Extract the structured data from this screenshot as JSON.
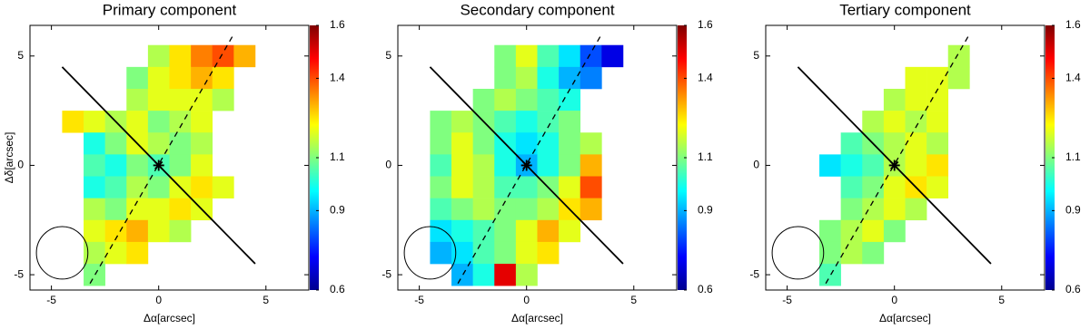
{
  "chart_data": [
    {
      "type": "heatmap",
      "title": "Primary component",
      "xlabel": "Δα[arcsec]",
      "ylabel": "Δδ[arcsec]",
      "x": [
        -4,
        -3,
        -2,
        -1,
        0,
        1,
        2,
        3,
        4
      ],
      "y": [
        5,
        4,
        3,
        2,
        1,
        0,
        -1,
        -2,
        -3,
        -4,
        -5
      ],
      "z": [
        [
          null,
          null,
          null,
          null,
          1.15,
          1.25,
          1.35,
          1.4,
          1.3
        ],
        [
          null,
          null,
          null,
          1.1,
          1.2,
          1.25,
          1.3,
          1.25,
          null
        ],
        [
          null,
          null,
          null,
          1.15,
          1.2,
          1.2,
          1.2,
          1.15,
          null
        ],
        [
          1.25,
          1.2,
          1.15,
          1.2,
          1.1,
          1.15,
          1.2,
          null,
          null
        ],
        [
          null,
          1.0,
          1.1,
          1.2,
          1.15,
          1.1,
          1.15,
          null,
          null
        ],
        [
          null,
          1.05,
          1.0,
          1.1,
          1.05,
          1.1,
          1.2,
          null,
          null
        ],
        [
          null,
          1.0,
          1.05,
          1.15,
          1.1,
          1.2,
          1.25,
          1.2,
          null
        ],
        [
          null,
          1.15,
          1.1,
          1.2,
          1.2,
          1.25,
          1.2,
          null,
          null
        ],
        [
          null,
          1.2,
          1.25,
          1.3,
          1.2,
          1.15,
          null,
          null,
          null
        ],
        [
          null,
          1.15,
          1.2,
          1.25,
          null,
          null,
          null,
          null,
          null
        ],
        [
          null,
          1.1,
          null,
          null,
          null,
          null,
          null,
          null,
          null
        ]
      ],
      "xlim": [
        -6,
        7
      ],
      "ylim": [
        -5.7,
        6.4
      ],
      "xticks": [
        -5,
        0,
        5
      ],
      "yticks": [
        -5,
        0,
        5
      ],
      "clim": [
        0.6,
        1.6
      ],
      "cticks": [
        0.6,
        0.9,
        1.1,
        1.4,
        1.6
      ]
    },
    {
      "type": "heatmap",
      "title": "Secondary component",
      "xlabel": "Δα[arcsec]",
      "x": [
        -4,
        -3,
        -2,
        -1,
        0,
        1,
        2,
        3,
        4
      ],
      "y": [
        5,
        4,
        3,
        2,
        1,
        0,
        -1,
        -2,
        -3,
        -4,
        -5
      ],
      "z": [
        [
          null,
          null,
          null,
          1.1,
          1.2,
          1.05,
          0.95,
          0.8,
          0.7
        ],
        [
          null,
          null,
          null,
          1.1,
          1.15,
          1.0,
          0.9,
          0.85,
          null
        ],
        [
          null,
          null,
          1.1,
          1.15,
          1.1,
          1.05,
          1.0,
          null,
          null
        ],
        [
          1.1,
          1.15,
          1.1,
          1.05,
          1.0,
          1.05,
          1.1,
          null,
          null
        ],
        [
          1.1,
          1.2,
          1.1,
          1.0,
          0.95,
          1.0,
          1.1,
          1.15,
          null
        ],
        [
          1.05,
          1.2,
          1.15,
          1.0,
          0.9,
          1.0,
          1.1,
          1.3,
          null
        ],
        [
          1.1,
          1.2,
          1.15,
          1.05,
          1.05,
          1.1,
          1.2,
          1.4,
          null
        ],
        [
          1.05,
          1.1,
          1.15,
          1.1,
          1.1,
          1.15,
          1.25,
          1.3,
          null
        ],
        [
          0.95,
          1.0,
          1.05,
          1.1,
          1.2,
          1.3,
          1.2,
          null,
          null
        ],
        [
          0.9,
          0.95,
          1.05,
          1.1,
          1.2,
          1.25,
          null,
          null,
          null
        ],
        [
          null,
          0.9,
          1.0,
          1.5,
          1.15,
          null,
          null,
          null,
          null
        ]
      ],
      "xlim": [
        -6,
        7
      ],
      "ylim": [
        -5.7,
        6.4
      ],
      "xticks": [
        -5,
        0,
        5
      ],
      "yticks": [
        -5,
        0,
        5
      ],
      "clim": [
        0.6,
        1.6
      ],
      "cticks": [
        0.6,
        0.9,
        1.1,
        1.4,
        1.6
      ]
    },
    {
      "type": "heatmap",
      "title": "Tertiary component",
      "xlabel": "Δα[arcsec]",
      "x": [
        -4,
        -3,
        -2,
        -1,
        0,
        1,
        2,
        3,
        4
      ],
      "y": [
        5,
        4,
        3,
        2,
        1,
        0,
        -1,
        -2,
        -3,
        -4,
        -5
      ],
      "z": [
        [
          null,
          null,
          null,
          null,
          null,
          null,
          null,
          1.15,
          null
        ],
        [
          null,
          null,
          null,
          null,
          null,
          1.2,
          1.2,
          1.15,
          null
        ],
        [
          null,
          null,
          null,
          null,
          1.15,
          1.2,
          1.2,
          null,
          null
        ],
        [
          null,
          null,
          null,
          1.15,
          1.2,
          1.15,
          1.2,
          null,
          null
        ],
        [
          null,
          null,
          1.05,
          1.1,
          1.15,
          1.2,
          1.15,
          null,
          null
        ],
        [
          null,
          0.95,
          1.0,
          1.05,
          1.15,
          1.2,
          1.25,
          null,
          null
        ],
        [
          null,
          null,
          1.05,
          1.1,
          1.2,
          1.25,
          1.2,
          null,
          null
        ],
        [
          null,
          null,
          1.1,
          1.15,
          1.2,
          1.15,
          null,
          null,
          null
        ],
        [
          null,
          1.1,
          1.15,
          1.2,
          1.1,
          null,
          null,
          null,
          null
        ],
        [
          null,
          1.1,
          1.15,
          1.1,
          null,
          null,
          null,
          null,
          null
        ],
        [
          null,
          1.05,
          null,
          null,
          null,
          null,
          null,
          null,
          null
        ]
      ],
      "xlim": [
        -6,
        7
      ],
      "ylim": [
        -5.7,
        6.4
      ],
      "xticks": [
        -5,
        0,
        5
      ],
      "yticks": [
        -5,
        0,
        5
      ],
      "clim": [
        0.6,
        1.6
      ],
      "cticks": [
        0.6,
        0.9,
        1.1,
        1.4,
        1.6
      ]
    }
  ]
}
